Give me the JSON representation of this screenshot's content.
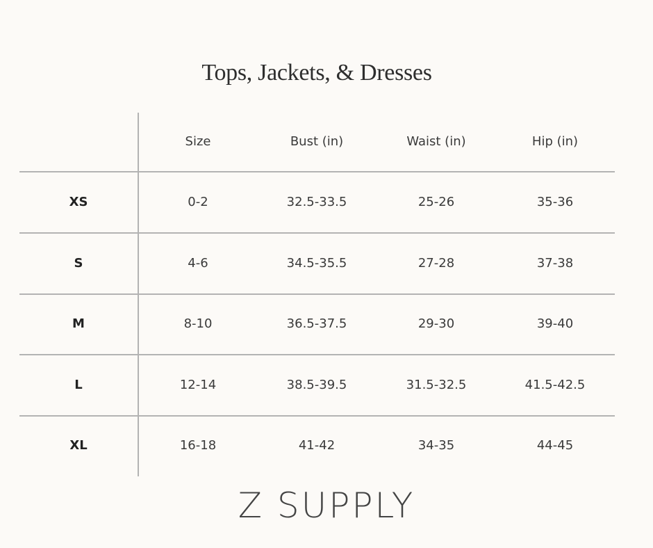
{
  "title": "Tops, Jackets, & Dresses",
  "table": {
    "headers": [
      "",
      "Size",
      "Bust (in)",
      "Waist (in)",
      "Hip (in)"
    ],
    "rows": [
      {
        "label": "XS",
        "size": "0-2",
        "bust": "32.5-33.5",
        "waist": "25-26",
        "hip": "35-36"
      },
      {
        "label": "S",
        "size": "4-6",
        "bust": "34.5-35.5",
        "waist": "27-28",
        "hip": "37-38"
      },
      {
        "label": "M",
        "size": "8-10",
        "bust": "36.5-37.5",
        "waist": "29-30",
        "hip": "39-40"
      },
      {
        "label": "L",
        "size": "12-14",
        "bust": "38.5-39.5",
        "waist": "31.5-32.5",
        "hip": "41.5-42.5"
      },
      {
        "label": "XL",
        "size": "16-18",
        "bust": "41-42",
        "waist": "34-35",
        "hip": "44-45"
      }
    ]
  },
  "logo": "Z SUPPLY",
  "colors": {
    "background": "#fcfaf7",
    "text": "#333333",
    "rule": "#b3b3b3"
  }
}
